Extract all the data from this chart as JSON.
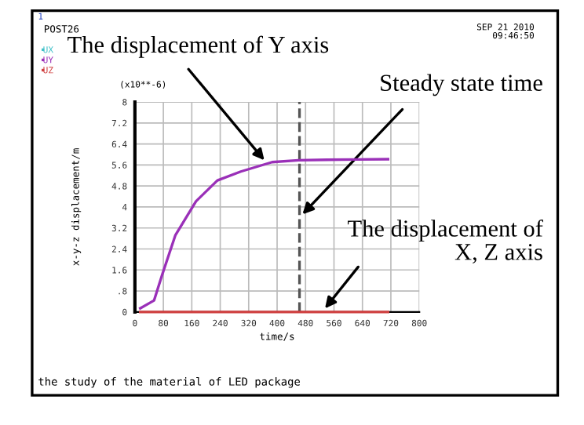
{
  "chart_data": {
    "type": "line",
    "title": "POST26",
    "subtitle": "SEP 21 2010\n09:46:50",
    "xlabel": "time/s",
    "ylabel": "x-y-z displacement/m",
    "xlim": [
      0,
      800
    ],
    "xticks": [
      0,
      80,
      160,
      240,
      320,
      400,
      480,
      560,
      640,
      720,
      800
    ],
    "ylim": [
      0,
      8
    ],
    "yticks": [
      {
        "value": 0,
        "label": "0"
      },
      {
        "value": 0.8,
        "label": ".8"
      },
      1.6,
      2.4,
      3.2,
      4,
      4.8,
      5.6,
      6.4,
      7.2,
      8
    ],
    "grid": true,
    "legend": "top left",
    "series": [
      {
        "name": "UX",
        "color": "#40c0c8"
      },
      {
        "name": "UY",
        "color": "#9a30b8",
        "x": [
          15,
          54,
          77,
          114,
          172,
          232,
          298,
          386,
          460,
          540,
          620,
          712
        ],
        "values": [
          0.14,
          0.44,
          1.43,
          2.93,
          4.22,
          5.01,
          5.35,
          5.71,
          5.78,
          5.8,
          5.81,
          5.82
        ]
      },
      {
        "name": "UZ",
        "color": "#d04040",
        "x": [
          15,
          712
        ],
        "values": [
          0,
          0
        ]
      }
    ],
    "ref_lines": [
      {
        "axis": "x",
        "value": 463,
        "color": "#555555",
        "line_style": "dashed"
      }
    ],
    "annotations": [
      "(x10**-6)",
      "1",
      {
        "text": "The displacement of Y axis",
        "x": 372,
        "y": 5.65
      },
      {
        "text": "Steady state time",
        "x": 463,
        "y": 3.6
      },
      {
        "text": "The displacement of\nX, Z axis",
        "x": 527,
        "y": 0
      },
      "the study of the material of LED package"
    ]
  }
}
